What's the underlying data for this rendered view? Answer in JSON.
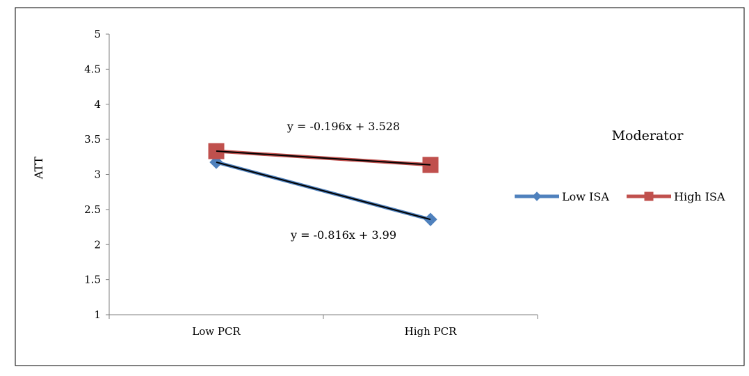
{
  "chart_data": {
    "type": "line",
    "title": "",
    "xlabel": "",
    "ylabel": "ATT",
    "categories": [
      "Low PCR",
      "High PCR"
    ],
    "ylim": [
      1,
      5
    ],
    "yticks": [
      "1",
      "1.5",
      "2",
      "2.5",
      "3",
      "3.5",
      "4",
      "4.5",
      "5"
    ],
    "grid": false,
    "legend": {
      "title": "Moderator",
      "placement": "right"
    },
    "series": [
      {
        "name": "Low ISA",
        "values": [
          3.174,
          2.358
        ],
        "color": "#4f81bd",
        "marker": "diamond",
        "trendline": {
          "equation": "y = -0.816x + 3.99",
          "values": [
            3.174,
            2.358
          ],
          "color": "#000000"
        }
      },
      {
        "name": "High ISA",
        "values": [
          3.332,
          3.136
        ],
        "color": "#c0504d",
        "marker": "square",
        "trendline": {
          "equation": "y = -0.196x + 3.528",
          "values": [
            3.332,
            3.136
          ],
          "color": "#000000"
        }
      }
    ]
  }
}
